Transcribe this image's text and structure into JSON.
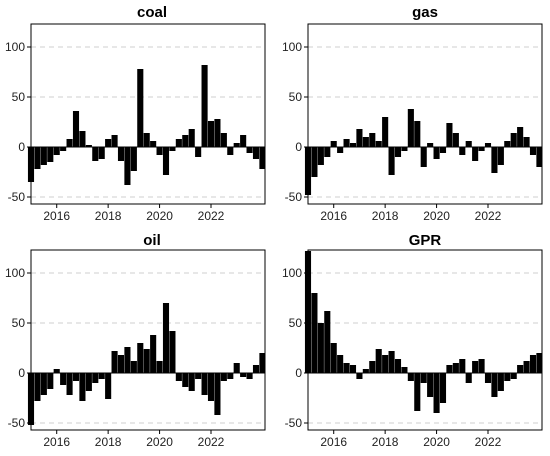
{
  "chart_data": [
    {
      "type": "bar",
      "title": "coal",
      "xlabel": "",
      "ylabel": "",
      "xlim": [
        2015.0,
        2024.1
      ],
      "ylim": [
        -57,
        123
      ],
      "yticks": [
        -50,
        0,
        50,
        100
      ],
      "xticks": [
        2016,
        2018,
        2020,
        2022
      ],
      "grid": "horizontal dashed",
      "color": "#000000",
      "x": [
        2015.0,
        2015.25,
        2015.5,
        2015.75,
        2016.0,
        2016.25,
        2016.5,
        2016.75,
        2017.0,
        2017.25,
        2017.5,
        2017.75,
        2018.0,
        2018.25,
        2018.5,
        2018.75,
        2019.0,
        2019.25,
        2019.5,
        2019.75,
        2020.0,
        2020.25,
        2020.5,
        2020.75,
        2021.0,
        2021.25,
        2021.5,
        2021.75,
        2022.0,
        2022.25,
        2022.5,
        2022.75,
        2023.0,
        2023.25,
        2023.5,
        2023.75,
        2024.0
      ],
      "values": [
        -35,
        -22,
        -18,
        -15,
        -8,
        -4,
        8,
        36,
        16,
        2,
        -14,
        -12,
        8,
        12,
        -14,
        -38,
        -24,
        78,
        14,
        6,
        -8,
        -28,
        -4,
        8,
        12,
        18,
        -10,
        82,
        26,
        28,
        14,
        -8,
        4,
        12,
        -6,
        -12,
        -22
      ]
    },
    {
      "type": "bar",
      "title": "gas",
      "xlabel": "",
      "ylabel": "",
      "xlim": [
        2015.0,
        2024.1
      ],
      "ylim": [
        -57,
        123
      ],
      "yticks": [
        -50,
        0,
        50,
        100
      ],
      "xticks": [
        2016,
        2018,
        2020,
        2022
      ],
      "grid": "horizontal dashed",
      "color": "#000000",
      "x": [
        2015.0,
        2015.25,
        2015.5,
        2015.75,
        2016.0,
        2016.25,
        2016.5,
        2016.75,
        2017.0,
        2017.25,
        2017.5,
        2017.75,
        2018.0,
        2018.25,
        2018.5,
        2018.75,
        2019.0,
        2019.25,
        2019.5,
        2019.75,
        2020.0,
        2020.25,
        2020.5,
        2020.75,
        2021.0,
        2021.25,
        2021.5,
        2021.75,
        2022.0,
        2022.25,
        2022.5,
        2022.75,
        2023.0,
        2023.25,
        2023.5,
        2023.75,
        2024.0
      ],
      "values": [
        -48,
        -30,
        -18,
        -10,
        6,
        -6,
        8,
        4,
        18,
        10,
        14,
        6,
        30,
        -28,
        -10,
        -4,
        38,
        26,
        -20,
        4,
        -12,
        -6,
        24,
        14,
        -8,
        6,
        -14,
        -4,
        4,
        -26,
        -18,
        6,
        14,
        20,
        10,
        -8,
        -20
      ]
    },
    {
      "type": "bar",
      "title": "oil",
      "xlabel": "",
      "ylabel": "",
      "xlim": [
        2015.0,
        2024.1
      ],
      "ylim": [
        -57,
        123
      ],
      "yticks": [
        -50,
        0,
        50,
        100
      ],
      "xticks": [
        2016,
        2018,
        2020,
        2022
      ],
      "grid": "horizontal dashed",
      "color": "#000000",
      "x": [
        2015.0,
        2015.25,
        2015.5,
        2015.75,
        2016.0,
        2016.25,
        2016.5,
        2016.75,
        2017.0,
        2017.25,
        2017.5,
        2017.75,
        2018.0,
        2018.25,
        2018.5,
        2018.75,
        2019.0,
        2019.25,
        2019.5,
        2019.75,
        2020.0,
        2020.25,
        2020.5,
        2020.75,
        2021.0,
        2021.25,
        2021.5,
        2021.75,
        2022.0,
        2022.25,
        2022.5,
        2022.75,
        2023.0,
        2023.25,
        2023.5,
        2023.75,
        2024.0
      ],
      "values": [
        -52,
        -28,
        -22,
        -16,
        4,
        -12,
        -22,
        -8,
        -28,
        -18,
        -10,
        -6,
        -26,
        22,
        18,
        26,
        12,
        30,
        24,
        38,
        12,
        70,
        42,
        -8,
        -14,
        -18,
        -6,
        -22,
        -28,
        -42,
        -8,
        -6,
        10,
        -4,
        -6,
        8,
        20
      ]
    },
    {
      "type": "bar",
      "title": "GPR",
      "xlabel": "",
      "ylabel": "",
      "xlim": [
        2015.0,
        2024.1
      ],
      "ylim": [
        -57,
        123
      ],
      "yticks": [
        -50,
        0,
        50,
        100
      ],
      "xticks": [
        2016,
        2018,
        2020,
        2022
      ],
      "grid": "horizontal dashed",
      "color": "#000000",
      "x": [
        2015.0,
        2015.25,
        2015.5,
        2015.75,
        2016.0,
        2016.25,
        2016.5,
        2016.75,
        2017.0,
        2017.25,
        2017.5,
        2017.75,
        2018.0,
        2018.25,
        2018.5,
        2018.75,
        2019.0,
        2019.25,
        2019.5,
        2019.75,
        2020.0,
        2020.25,
        2020.5,
        2020.75,
        2021.0,
        2021.25,
        2021.5,
        2021.75,
        2022.0,
        2022.25,
        2022.5,
        2022.75,
        2023.0,
        2023.25,
        2023.5,
        2023.75,
        2024.0
      ],
      "values": [
        122,
        80,
        50,
        62,
        30,
        18,
        10,
        8,
        -6,
        4,
        12,
        24,
        18,
        22,
        14,
        6,
        -8,
        -38,
        -10,
        -24,
        -40,
        -30,
        8,
        10,
        14,
        -10,
        12,
        14,
        -10,
        -24,
        -18,
        -8,
        -6,
        8,
        12,
        18,
        20
      ]
    }
  ]
}
